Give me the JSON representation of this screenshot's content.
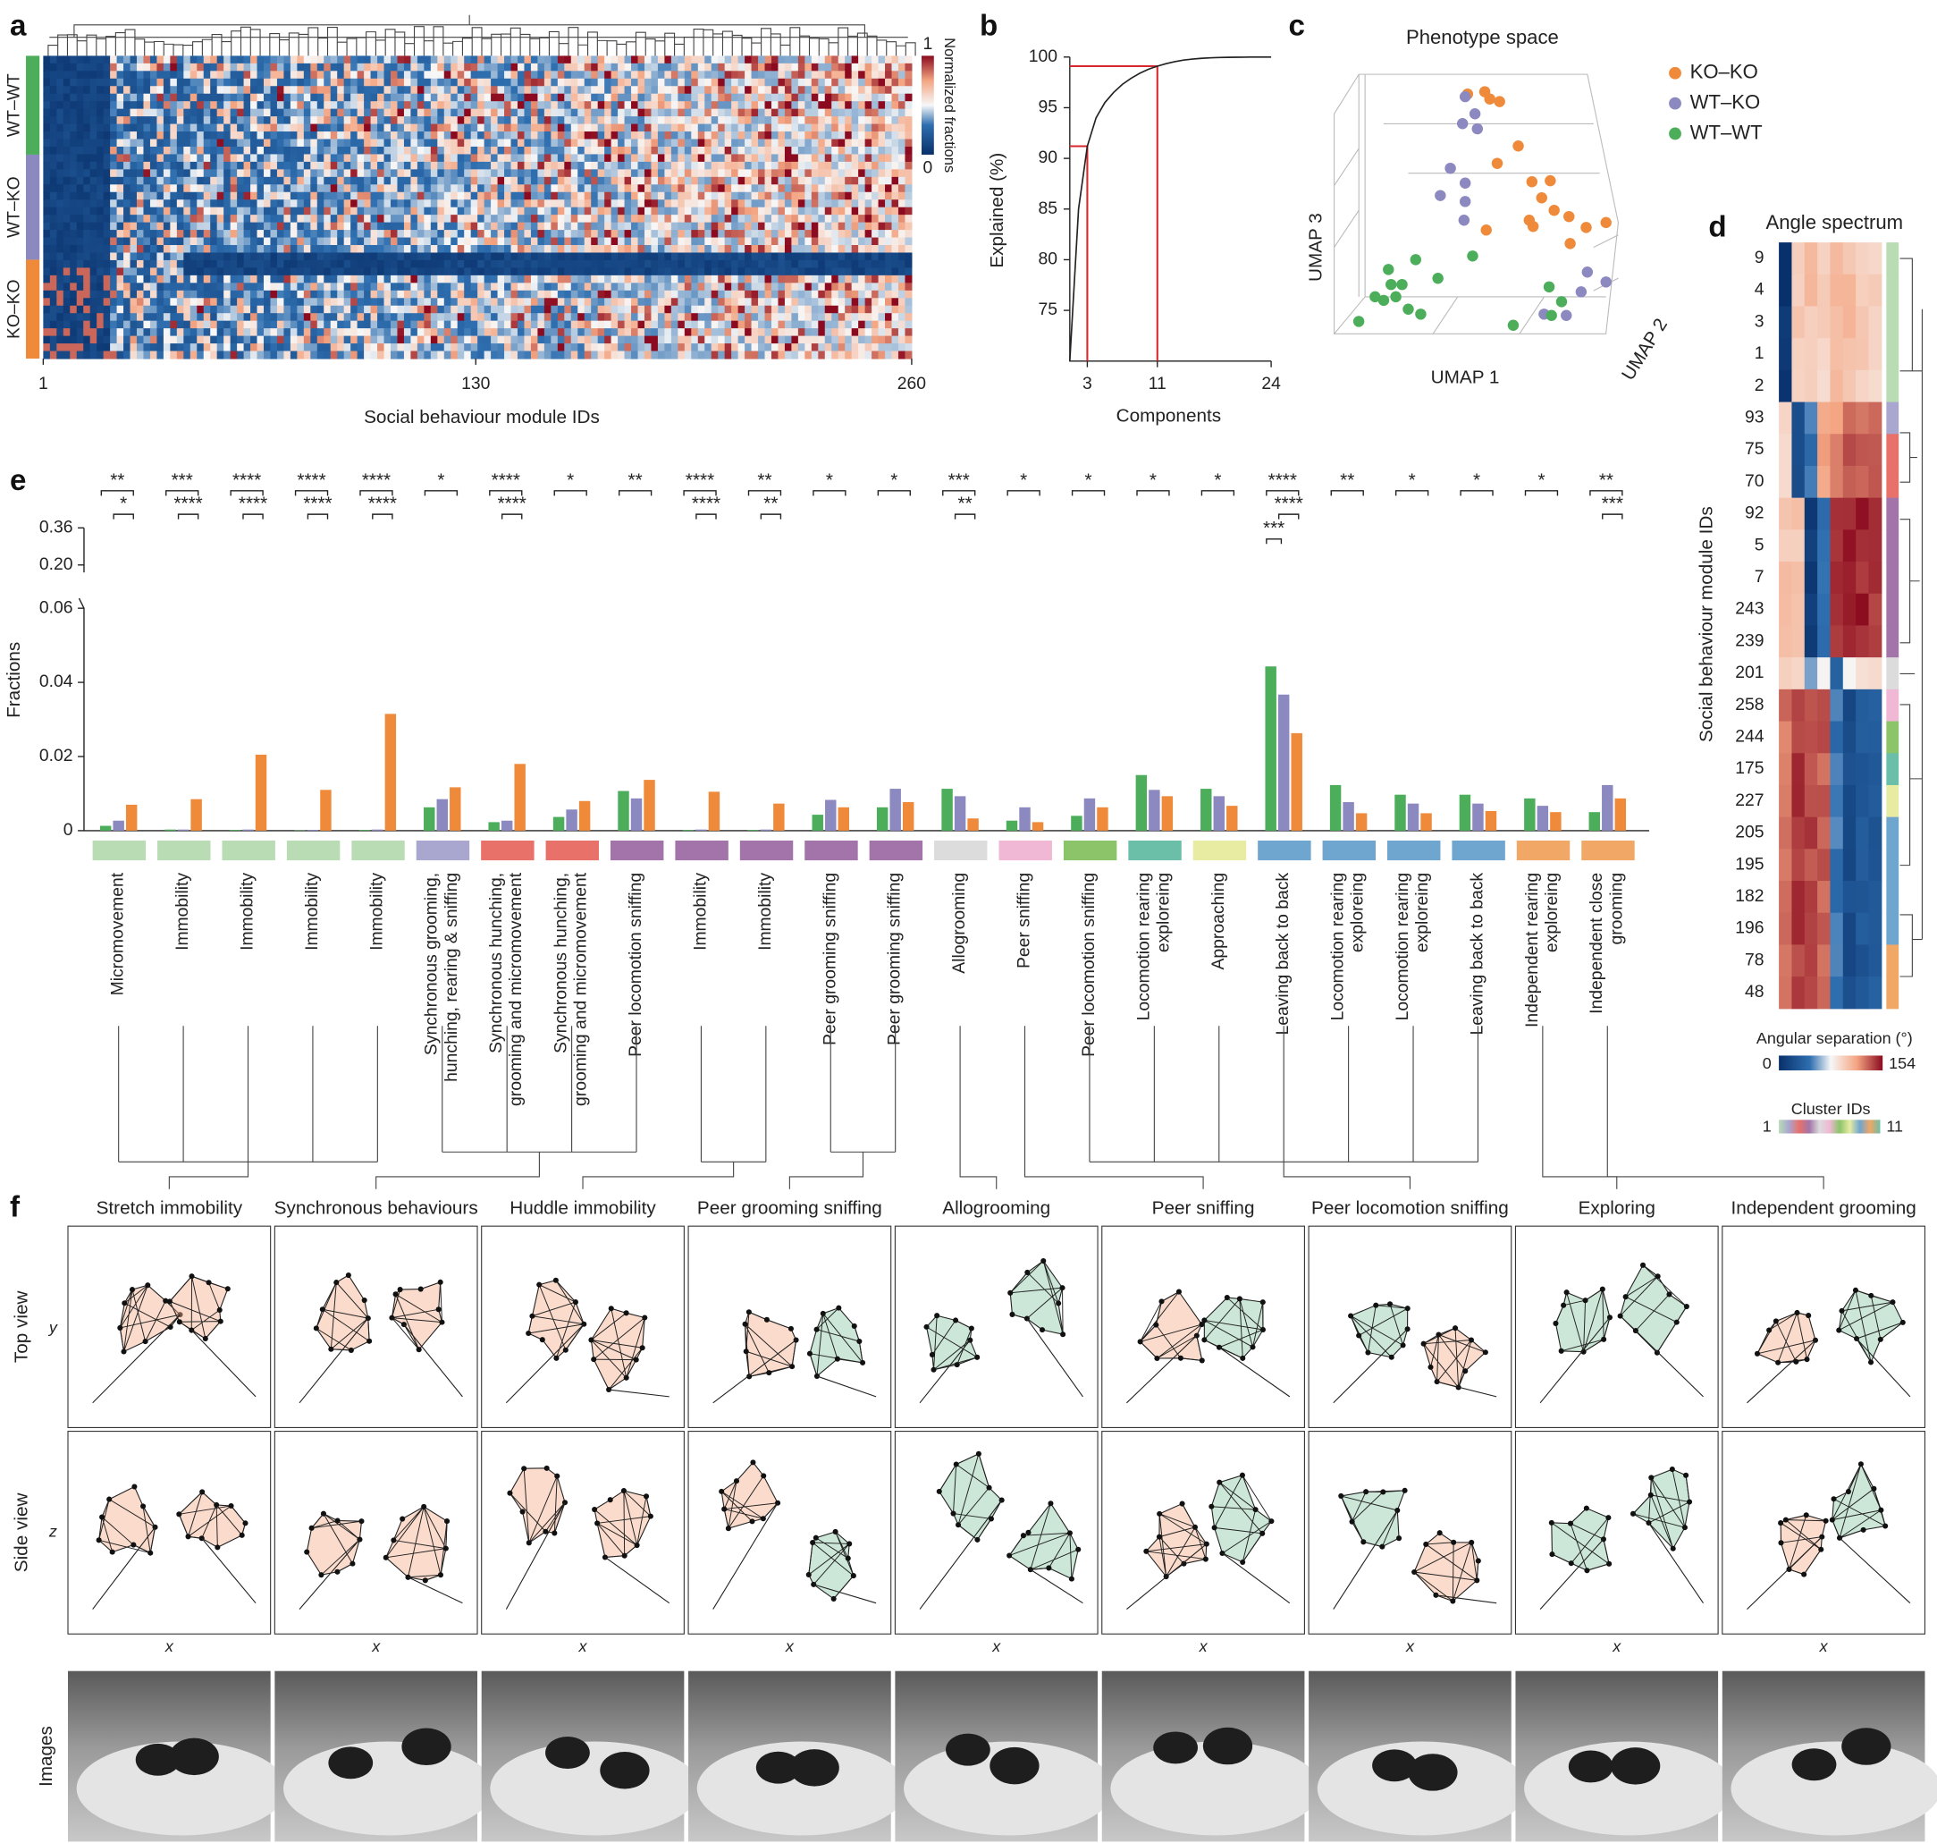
{
  "panel_labels": [
    "a",
    "b",
    "c",
    "d",
    "e",
    "f"
  ],
  "chart_data": [
    {
      "type": "heatmap",
      "xlabel": "Social behaviour module IDs",
      "xlim": [
        1,
        260
      ],
      "xticks": [
        1,
        130,
        260
      ],
      "rows": [
        "WT–WT",
        "WT–KO",
        "KO–KO"
      ],
      "row_colors": [
        "#4cae5a",
        "#8c88c0",
        "#ee8a3a"
      ],
      "colorbar": {
        "label": "Normalized fractions",
        "ticks": [
          0,
          1
        ]
      }
    },
    {
      "type": "line",
      "xlabel": "Components",
      "ylabel": "Explained (%)",
      "x": [
        1,
        2,
        3,
        4,
        5,
        6,
        7,
        8,
        9,
        10,
        11,
        12,
        13,
        14,
        15,
        16,
        17,
        18,
        19,
        20,
        21,
        22,
        23,
        24
      ],
      "values": [
        70,
        85,
        91.2,
        94,
        95.5,
        96.5,
        97.3,
        97.9,
        98.4,
        98.8,
        99.1,
        99.35,
        99.55,
        99.7,
        99.8,
        99.87,
        99.92,
        99.95,
        99.97,
        99.98,
        99.99,
        100,
        100,
        100
      ],
      "color": "#222222",
      "xlim": [
        1,
        24
      ],
      "ylim": [
        70,
        100
      ],
      "xticks": [
        3,
        11,
        24
      ],
      "yticks": [
        75,
        80,
        85,
        90,
        95,
        100
      ],
      "markers": [
        {
          "x": 3,
          "y": 91.2
        },
        {
          "x": 11,
          "y": 99.1
        }
      ],
      "marker_color": "#d7262e"
    },
    {
      "type": "scatter",
      "title": "Phenotype space",
      "xlabel": "UMAP 1",
      "ylabel": "UMAP 3",
      "zlabel": "UMAP 2",
      "xlim": [
        0,
        100
      ],
      "ylim": [
        0,
        100
      ],
      "series": [
        {
          "name": "KO–KO",
          "color": "#ee8a3a",
          "x": [
            45,
            50.8,
            52.5,
            55.8,
            55,
            62.1,
            66.7,
            70,
            74.2,
            65.8,
            67.1,
            79.2,
            85,
            91.7,
            79.6,
            51.3,
            72.9
          ],
          "y": [
            92.4,
            93.3,
            90.5,
            89.5,
            65.7,
            72.4,
            58.6,
            52.4,
            47.6,
            43.8,
            41.4,
            45.2,
            41,
            42.9,
            34.8,
            40,
            59
          ]
        },
        {
          "name": "WT–KO",
          "color": "#8c88c0",
          "x": [
            44.2,
            47.5,
            43.3,
            48.3,
            39.2,
            35.8,
            44.2,
            44.2,
            43.8,
            85.4,
            91.7,
            83.3,
            78.3,
            70.8
          ],
          "y": [
            91.4,
            84.8,
            81,
            79,
            63.8,
            53.3,
            58.1,
            51,
            43.8,
            23.8,
            20,
            16.2,
            7.1,
            7.6
          ]
        },
        {
          "name": "WT–WT",
          "color": "#4cae5a",
          "x": [
            46.7,
            35,
            27.5,
            18.3,
            13.8,
            16.7,
            20.8,
            25,
            19.2,
            22.9,
            8.3,
            29.2,
            60.4,
            73.3,
            76.7,
            72.5
          ],
          "y": [
            30,
            21.4,
            28.6,
            24.8,
            14.3,
            12.9,
            14.3,
            9.5,
            19,
            19,
            4.8,
            7.6,
            3.3,
            7.1,
            12.4,
            18.1
          ]
        }
      ]
    },
    {
      "type": "heatmap",
      "title": "Angle spectrum",
      "ylabel": "Social behaviour module IDs",
      "rows": [
        9,
        4,
        3,
        1,
        2,
        93,
        75,
        70,
        92,
        5,
        7,
        243,
        239,
        201,
        258,
        244,
        175,
        227,
        205,
        195,
        182,
        196,
        78,
        48
      ],
      "colorbar": {
        "label": "Angular separation (°)",
        "ticks": [
          0,
          154
        ]
      },
      "cluster_label": "Cluster IDs",
      "cluster_ticks": [
        1,
        11
      ]
    },
    {
      "type": "bar",
      "ylabel": "Fractions",
      "ylim": [
        0,
        0.36
      ],
      "ybreak": [
        0.06,
        0.2
      ],
      "yticks": [
        0,
        0.02,
        0.04,
        0.06,
        {
          "value": 0.2,
          "label": "0.20"
        },
        0.36
      ],
      "categories": [
        "Micromovement",
        "Immobility",
        "Immobility",
        "Immobility",
        "Immobility",
        "Synchronous grooming,\nhunching, rearing & sniffing",
        "Synchronous hunching,\ngrooming and micromovement",
        "Synchronous hunching,\ngrooming and micromovement",
        "Peer locomotion sniffing",
        "Immobility",
        "Immobility",
        "Peer grooming sniffing",
        "Peer grooming sniffing",
        "Allogrooming",
        "Peer sniffing",
        "Peer locomotion sniffing",
        "Locomotion rearing\nexploreing",
        "Approaching",
        "Leaving back to back",
        "Locomotion rearing\nexploreing",
        "Locomotion rearing\nexploreing",
        "Leaving back to back",
        "Independent rearing\nexploreing",
        "Independent close\ngrooming"
      ],
      "category_colors": [
        "#b9dcb5",
        "#b9dcb5",
        "#b9dcb5",
        "#b9dcb5",
        "#b9dcb5",
        "#a9a6d0",
        "#e8716a",
        "#e8716a",
        "#a374a9",
        "#a374a9",
        "#a374a9",
        "#a374a9",
        "#a374a9",
        "#dcdcdc",
        "#f0b8d4",
        "#8cc46a",
        "#6bbfa8",
        "#e7eca2",
        "#6fa6cf",
        "#6fa6cf",
        "#6fa6cf",
        "#6fa6cf",
        "#f1a765",
        "#f1a765"
      ],
      "series": [
        {
          "name": "WT–WT",
          "color": "#4cae5a",
          "values": [
            0.0013,
            0.0003,
            0.0002,
            0.0001,
            0.0002,
            0.0063,
            0.0023,
            0.0037,
            0.0107,
            0.0002,
            0.0002,
            0.0043,
            0.0063,
            0.0113,
            0.0027,
            0.004,
            0.015,
            0.0113,
            0.0443,
            0.0123,
            0.0097,
            0.0097,
            0.0087,
            0.005
          ]
        },
        {
          "name": "WT–KO",
          "color": "#8c88c0",
          "values": [
            0.0027,
            0.0003,
            0.0003,
            0.0002,
            0.0003,
            0.0085,
            0.0027,
            0.0057,
            0.0087,
            0.0003,
            0.0003,
            0.0083,
            0.0113,
            0.0093,
            0.0063,
            0.0087,
            0.011,
            0.0093,
            0.0367,
            0.0077,
            0.0073,
            0.0073,
            0.0067,
            0.0123
          ]
        },
        {
          "name": "KO–KO",
          "color": "#ee8a3a",
          "values": [
            0.007,
            0.0085,
            0.0205,
            0.011,
            0.0315,
            0.0117,
            0.018,
            0.008,
            0.0137,
            0.0105,
            0.0073,
            0.0063,
            0.0077,
            0.0033,
            0.0023,
            0.0063,
            0.0093,
            0.0067,
            0.0263,
            0.0047,
            0.0047,
            0.0053,
            0.005,
            0.0087
          ]
        }
      ],
      "significance": [
        [
          "**",
          "***",
          "****",
          "****",
          "****",
          "*",
          "****",
          "*",
          "**",
          "****",
          "**",
          "*",
          "*",
          "***",
          "*",
          "*",
          "*",
          "*",
          "****",
          "**",
          "*",
          "*",
          "*",
          "**"
        ],
        [
          "*",
          "****",
          "****",
          "****",
          "****",
          null,
          "****",
          null,
          null,
          "****",
          "**",
          null,
          null,
          "**",
          null,
          null,
          null,
          null,
          "****",
          null,
          null,
          null,
          null,
          "***"
        ],
        [
          null,
          null,
          null,
          null,
          null,
          null,
          null,
          null,
          null,
          null,
          null,
          null,
          null,
          null,
          null,
          null,
          null,
          null,
          "***",
          null,
          null,
          null,
          null,
          null
        ]
      ]
    }
  ],
  "panel_f": {
    "clusters": [
      "Stretch immobility",
      "Synchronous behaviours",
      "Huddle immobility",
      "Peer grooming sniffing",
      "Allogrooming",
      "Peer sniffing",
      "Peer locomotion sniffing",
      "Exploring",
      "Independent grooming"
    ],
    "rows": [
      "Top view",
      "Side view",
      "Images"
    ],
    "axes": [
      "y",
      "z",
      "x"
    ]
  }
}
